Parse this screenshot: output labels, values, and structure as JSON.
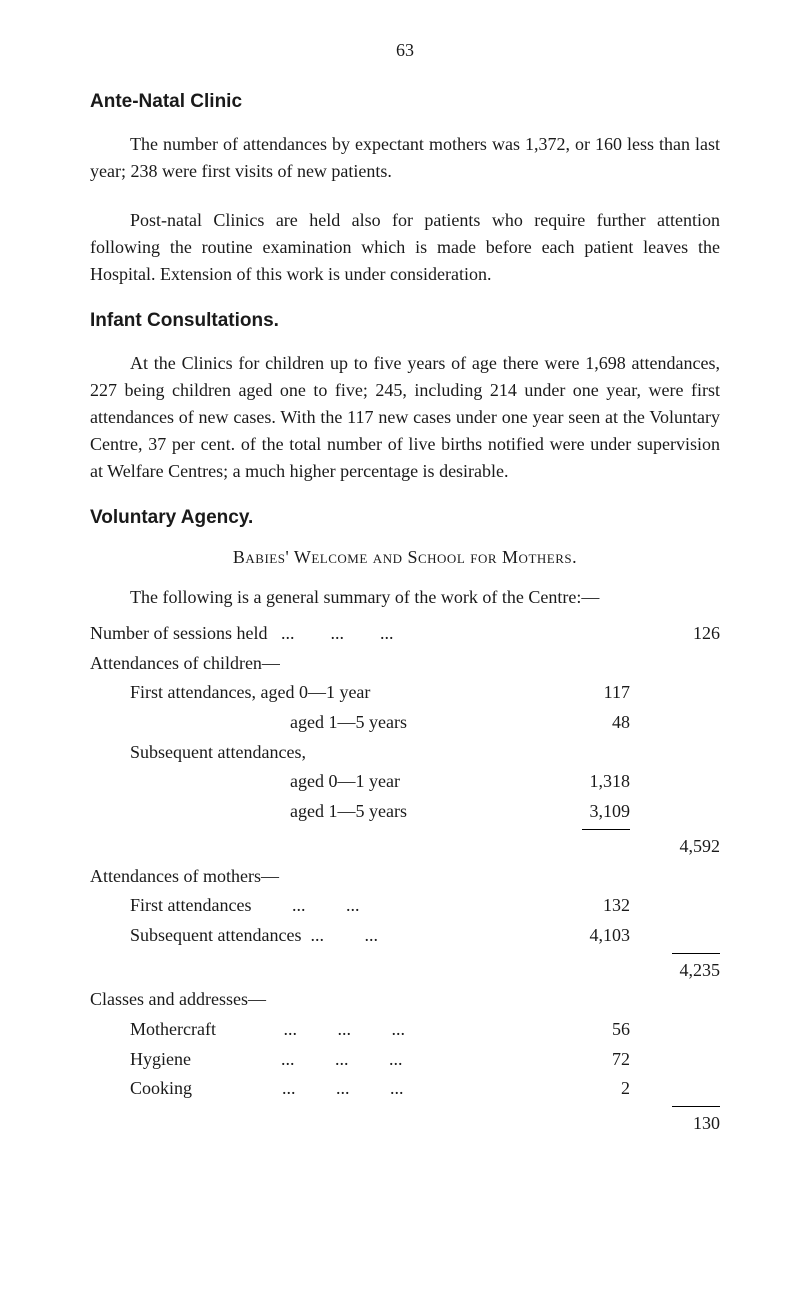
{
  "page_number": "63",
  "antenatal": {
    "heading": "Ante-Natal Clinic",
    "para1": "The number of attendances by expectant mothers was 1,372, or 160 less than last year; 238 were first visits of new patients.",
    "para2": "Post-natal Clinics are held also for patients who require further attention following the routine examination which is made before each patient leaves the Hospital. Extension of this work is under consideration."
  },
  "infant": {
    "heading": "Infant Consultations.",
    "para": "At the Clinics for children up to five years of age there were 1,698 attendances, 227 being children aged one to five; 245, including 214 under one year, were first attendances of new cases. With the 117 new cases under one year seen at the Voluntary Centre, 37 per cent. of the total number of live births notified were under supervision at Welfare Centres; a much higher percentage is desirable."
  },
  "voluntary": {
    "heading": "Voluntary Agency.",
    "subheading": "Babies' Welcome and School for Mothers.",
    "intro": "The following is a general summary of the work of the Centre:—",
    "sessions": {
      "label": "Number of sessions held",
      "value": "126"
    },
    "children": {
      "group_label": "Attendances of children—",
      "first_0_1": {
        "label": "First attendances, aged 0—1 year",
        "value": "117"
      },
      "first_1_5": {
        "label": "aged 1—5 years",
        "value": "48"
      },
      "sub_label": "Subsequent attendances,",
      "sub_0_1": {
        "label": "aged 0—1 year",
        "value": "1,318"
      },
      "sub_1_5": {
        "label": "aged 1—5 years",
        "value": "3,109"
      },
      "total": "4,592"
    },
    "mothers": {
      "group_label": "Attendances of mothers—",
      "first": {
        "label": "First attendances",
        "value": "132"
      },
      "subsequent": {
        "label": "Subsequent attendances",
        "value": "4,103"
      },
      "total": "4,235"
    },
    "classes": {
      "group_label": "Classes and addresses—",
      "mothercraft": {
        "label": "Mothercraft",
        "value": "56"
      },
      "hygiene": {
        "label": "Hygiene",
        "value": "72"
      },
      "cooking": {
        "label": "Cooking",
        "value": "2"
      },
      "total": "130"
    }
  }
}
